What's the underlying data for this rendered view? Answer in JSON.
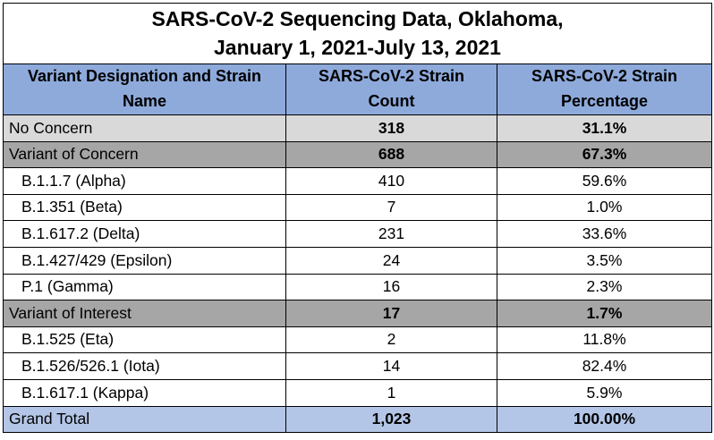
{
  "title_line1": "SARS-CoV-2 Sequencing Data, Oklahoma,",
  "title_line2": "January 1, 2021-July 13, 2021",
  "header": {
    "col1_line1": "Variant Designation and Strain",
    "col1_line2": "Name",
    "col2_line1": "SARS-CoV-2 Strain",
    "col2_line2": "Count",
    "col3_line1": "SARS-CoV-2 Strain",
    "col3_line2": "Percentage"
  },
  "rows": [
    {
      "name": "No Concern",
      "count": "318",
      "pct": "31.1%"
    },
    {
      "name": "Variant of Concern",
      "count": "688",
      "pct": "67.3%"
    },
    {
      "name": "B.1.1.7 (Alpha)",
      "count": "410",
      "pct": "59.6%"
    },
    {
      "name": "B.1.351 (Beta)",
      "count": "7",
      "pct": "1.0%"
    },
    {
      "name": "B.1.617.2 (Delta)",
      "count": "231",
      "pct": "33.6%"
    },
    {
      "name": "B.1.427/429 (Epsilon)",
      "count": "24",
      "pct": "3.5%"
    },
    {
      "name": "P.1 (Gamma)",
      "count": "16",
      "pct": "2.3%"
    },
    {
      "name": "Variant of Interest",
      "count": "17",
      "pct": "1.7%"
    },
    {
      "name": "B.1.525 (Eta)",
      "count": "2",
      "pct": "11.8%"
    },
    {
      "name": "B.1.526/526.1 (Iota)",
      "count": "14",
      "pct": "82.4%"
    },
    {
      "name": "B.1.617.1 (Kappa)",
      "count": "1",
      "pct": "5.9%"
    },
    {
      "name": "Grand Total",
      "count": "1,023",
      "pct": "100.00%"
    }
  ],
  "colors": {
    "header_bg": "#8eaadb",
    "no_concern_bg": "#d9d9d9",
    "variant_group_bg": "#a6a6a6",
    "grand_total_bg": "#b4c6e7"
  },
  "chart_data": {
    "type": "table",
    "title": "SARS-CoV-2 Sequencing Data, Oklahoma, January 1, 2021-July 13, 2021",
    "columns": [
      "Variant Designation and Strain Name",
      "SARS-CoV-2 Strain Count",
      "SARS-CoV-2 Strain Percentage"
    ],
    "rows": [
      [
        "No Concern",
        318,
        "31.1%"
      ],
      [
        "Variant of Concern",
        688,
        "67.3%"
      ],
      [
        "B.1.1.7 (Alpha)",
        410,
        "59.6%"
      ],
      [
        "B.1.351 (Beta)",
        7,
        "1.0%"
      ],
      [
        "B.1.617.2 (Delta)",
        231,
        "33.6%"
      ],
      [
        "B.1.427/429 (Epsilon)",
        24,
        "3.5%"
      ],
      [
        "P.1 (Gamma)",
        16,
        "2.3%"
      ],
      [
        "Variant of Interest",
        17,
        "1.7%"
      ],
      [
        "B.1.525 (Eta)",
        2,
        "11.8%"
      ],
      [
        "B.1.526/526.1 (Iota)",
        14,
        "82.4%"
      ],
      [
        "B.1.617.1 (Kappa)",
        1,
        "5.9%"
      ],
      [
        "Grand Total",
        1023,
        "100.00%"
      ]
    ]
  }
}
